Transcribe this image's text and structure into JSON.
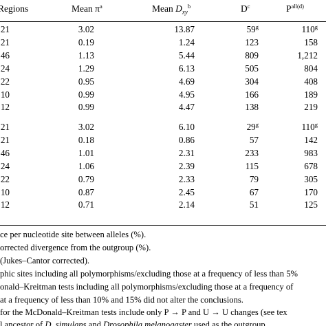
{
  "header": {
    "regions": "Regions",
    "mean_pi": "Mean π",
    "mean_pi_sup": "a",
    "mean_dxy_label": "Mean ",
    "mean_dxy_var": "D",
    "mean_dxy_sub": "xy",
    "mean_dxy_sup": "b",
    "d": "D",
    "d_sup": "c",
    "p": "P",
    "p_sup": "all(d)"
  },
  "section1": [
    {
      "regions": "21",
      "pi": "3.02",
      "dxy": "13.87",
      "d": "59",
      "d_sup": "g",
      "p": "110",
      "p_sup": "g"
    },
    {
      "regions": "21",
      "pi": "0.19",
      "dxy": "1.24",
      "d": "123",
      "p": "158"
    },
    {
      "regions": "46",
      "pi": "1.13",
      "dxy": "5.44",
      "d": "809",
      "p": "1,212"
    },
    {
      "regions": "24",
      "pi": "1.29",
      "dxy": "6.13",
      "d": "505",
      "p": "804"
    },
    {
      "regions": "22",
      "pi": "0.95",
      "dxy": "4.69",
      "d": "304",
      "p": "408"
    },
    {
      "regions": "10",
      "pi": "0.99",
      "dxy": "4.95",
      "d": "166",
      "p": "189"
    },
    {
      "regions": "12",
      "pi": "0.99",
      "dxy": "4.47",
      "d": "138",
      "p": "219"
    }
  ],
  "section2": [
    {
      "regions": "21",
      "pi": "3.02",
      "dxy": "6.10",
      "d": "29",
      "d_sup": "g",
      "p": "110",
      "p_sup": "g"
    },
    {
      "regions": "21",
      "pi": "0.18",
      "dxy": "0.86",
      "d": "57",
      "p": "142"
    },
    {
      "regions": "46",
      "pi": "1.01",
      "dxy": "2.31",
      "d": "233",
      "p": "983"
    },
    {
      "regions": "24",
      "pi": "1.06",
      "dxy": "2.39",
      "d": "115",
      "p": "678"
    },
    {
      "regions": "22",
      "pi": "0.79",
      "dxy": "2.33",
      "d": "79",
      "p": "305"
    },
    {
      "regions": "10",
      "pi": "0.87",
      "dxy": "2.45",
      "d": "67",
      "p": "170"
    },
    {
      "regions": "12",
      "pi": "0.71",
      "dxy": "2.14",
      "d": "51",
      "p": "125"
    }
  ],
  "footnotes": {
    "a": "ce per nucleotide site between alleles (%).",
    "b": "orrected divergence from the outgroup (%).",
    "c": " (Jukes–Cantor corrected).",
    "d": "phic sites including all polymorphisms/excluding those at a frequency of less than 5%",
    "e": "onald–Kreitman tests including all polymorphisms/excluding those at a frequency of",
    "f": "at a frequency of less than 10% and 15% did not alter the conclusions.",
    "g_pre": " for the McDonald–Kreitman tests include only P → P and U → U changes (see tex",
    "h_pre": "l ancestor of ",
    "h_sp1": "D. simulans",
    "h_mid": " and ",
    "h_sp2": "Drosophila melanogaster",
    "h_post": " used as the outgroup."
  }
}
